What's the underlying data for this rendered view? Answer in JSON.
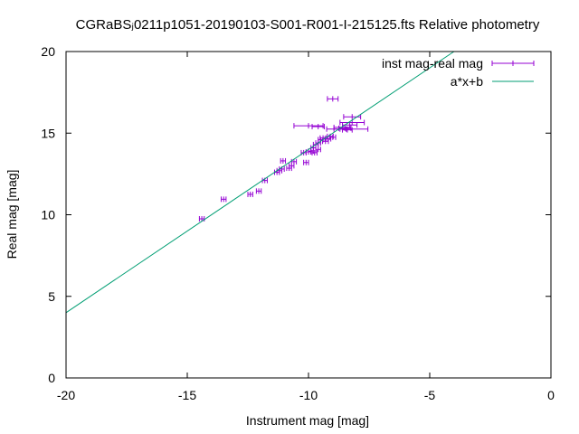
{
  "chart_data": {
    "type": "scatter",
    "title": "CGRaBSⱼ0211p1051-20190103-S001-R001-I-215125.fts Relative photometry",
    "xlabel": "Instrument mag [mag]",
    "ylabel": "Real mag [mag]",
    "xlim": [
      -20,
      0
    ],
    "ylim": [
      0,
      20
    ],
    "x_ticks": [
      -20,
      -15,
      -10,
      -5,
      0
    ],
    "y_ticks": [
      0,
      5,
      10,
      15,
      20
    ],
    "x_tick_labels": [
      "-20",
      "-15",
      "-10",
      "-5",
      "0"
    ],
    "y_tick_labels": [
      "0",
      "5",
      "10",
      "15",
      "20"
    ],
    "grid": false,
    "legend_position": "top-right",
    "series": [
      {
        "name": "inst mag-real mag",
        "kind": "errorbars",
        "color": "#9400d3",
        "points": [
          {
            "x": -14.4,
            "y": 9.75,
            "xerr": 0.1
          },
          {
            "x": -13.5,
            "y": 10.95,
            "xerr": 0.1
          },
          {
            "x": -12.4,
            "y": 11.25,
            "xerr": 0.1
          },
          {
            "x": -12.05,
            "y": 11.45,
            "xerr": 0.1
          },
          {
            "x": -11.8,
            "y": 12.1,
            "xerr": 0.1
          },
          {
            "x": -11.3,
            "y": 12.6,
            "xerr": 0.1
          },
          {
            "x": -11.2,
            "y": 12.7,
            "xerr": 0.1
          },
          {
            "x": -11.1,
            "y": 12.8,
            "xerr": 0.1
          },
          {
            "x": -11.05,
            "y": 13.3,
            "xerr": 0.1
          },
          {
            "x": -10.8,
            "y": 12.85,
            "xerr": 0.1
          },
          {
            "x": -10.7,
            "y": 13.0,
            "xerr": 0.1
          },
          {
            "x": -10.6,
            "y": 13.25,
            "xerr": 0.1
          },
          {
            "x": -10.2,
            "y": 13.8,
            "xerr": 0.1
          },
          {
            "x": -10.1,
            "y": 13.2,
            "xerr": 0.1
          },
          {
            "x": -10.0,
            "y": 13.85,
            "xerr": 0.1
          },
          {
            "x": -9.9,
            "y": 13.9,
            "xerr": 0.1
          },
          {
            "x": -9.8,
            "y": 14.1,
            "xerr": 0.1
          },
          {
            "x": -9.75,
            "y": 13.8,
            "xerr": 0.1
          },
          {
            "x": -9.7,
            "y": 14.3,
            "xerr": 0.1
          },
          {
            "x": -9.6,
            "y": 14.4,
            "xerr": 0.1
          },
          {
            "x": -9.6,
            "y": 14.0,
            "xerr": 0.1
          },
          {
            "x": -9.5,
            "y": 14.6,
            "xerr": 0.1
          },
          {
            "x": -9.4,
            "y": 14.7,
            "xerr": 0.12
          },
          {
            "x": -9.3,
            "y": 14.5,
            "xerr": 0.12
          },
          {
            "x": -9.2,
            "y": 14.65,
            "xerr": 0.12
          },
          {
            "x": -9.1,
            "y": 14.8,
            "xerr": 0.12
          },
          {
            "x": -9.0,
            "y": 14.75,
            "xerr": 0.12
          },
          {
            "x": -9.0,
            "y": 17.1,
            "xerr": 0.22
          },
          {
            "x": -10.0,
            "y": 15.45,
            "xerr": 0.6
          },
          {
            "x": -9.6,
            "y": 15.4,
            "xerr": 0.25
          },
          {
            "x": -8.7,
            "y": 15.25,
            "xerr": 0.25
          },
          {
            "x": -8.6,
            "y": 15.35,
            "xerr": 0.35
          },
          {
            "x": -8.5,
            "y": 15.3,
            "xerr": 0.25
          },
          {
            "x": -8.4,
            "y": 15.2,
            "xerr": 0.2
          },
          {
            "x": -8.3,
            "y": 15.5,
            "xerr": 0.3
          },
          {
            "x": -8.2,
            "y": 15.65,
            "xerr": 0.5
          },
          {
            "x": -8.2,
            "y": 16.0,
            "xerr": 0.35
          },
          {
            "x": -8.4,
            "y": 15.25,
            "xerr": 0.85
          }
        ]
      },
      {
        "name": "a*x+b",
        "kind": "line",
        "color": "#009e73",
        "slope": 1.0,
        "intercept": 24.0
      }
    ]
  }
}
